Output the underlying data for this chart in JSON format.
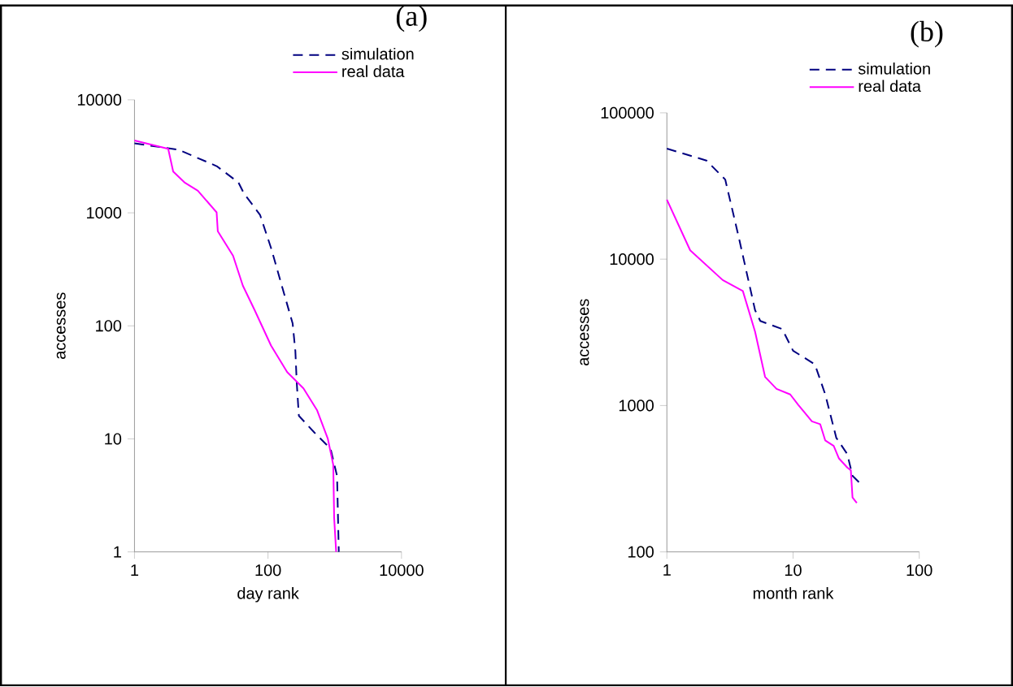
{
  "chart_data": [
    {
      "type": "line",
      "title": "(a)",
      "xlabel": "day rank",
      "ylabel": "accesses",
      "log": "xy",
      "legend": "top right",
      "xlim": [
        1,
        10000
      ],
      "ylim": [
        1,
        10000
      ],
      "xticks": [
        1,
        100,
        10000
      ],
      "yticks": [
        1,
        10,
        100,
        1000,
        10000
      ],
      "series": [
        {
          "name": "simulation",
          "color": "#000080",
          "line_style": "dashed",
          "x": [
            1,
            4.6,
            17,
            36,
            43.5,
            76,
            111,
            161,
            234,
            257,
            270,
            290,
            494,
            865,
            1083,
            1150
          ],
          "values": [
            4120,
            3610,
            2590,
            1860,
            1490,
            960,
            490,
            227,
            105,
            60,
            31,
            16,
            11.4,
            8.2,
            4.7,
            1
          ]
        },
        {
          "name": "real data",
          "color": "#ff00ff",
          "line_style": "solid",
          "x": [
            1,
            3.2,
            3.8,
            5.6,
            8.9,
            17,
            17.7,
            30,
            42,
            63,
            111,
            194,
            340,
            542,
            789,
            950,
            980,
            1050
          ],
          "values": [
            4360,
            3690,
            2320,
            1860,
            1570,
            1010,
            687,
            417,
            227,
            138,
            67,
            39,
            28,
            18,
            10,
            5.9,
            2,
            1
          ]
        }
      ]
    },
    {
      "type": "line",
      "title": "(b)",
      "xlabel": "month rank",
      "ylabel": "accesses",
      "log": "xy",
      "legend": "top right",
      "xlim": [
        1,
        100
      ],
      "ylim": [
        100,
        100000
      ],
      "xticks": [
        1,
        10,
        100
      ],
      "yticks": [
        100,
        1000,
        10000,
        100000
      ],
      "series": [
        {
          "name": "simulation",
          "color": "#000080",
          "line_style": "dashed",
          "x": [
            1,
            2.06,
            2.9,
            3.7,
            5.0,
            5.5,
            8.2,
            10,
            14.9,
            18,
            22,
            26.9,
            29.6,
            34.4
          ],
          "values": [
            56900,
            47200,
            35000,
            14300,
            4480,
            3780,
            3330,
            2370,
            1910,
            1190,
            602,
            466,
            331,
            291
          ]
        },
        {
          "name": "real data",
          "color": "#ff00ff",
          "line_style": "solid",
          "x": [
            1,
            1.53,
            2.77,
            4.0,
            5.0,
            6.0,
            7.4,
            9.5,
            11,
            14.1,
            16.4,
            18,
            21,
            23.1,
            26.9,
            28.7,
            29.6,
            32
          ],
          "values": [
            25500,
            11500,
            7200,
            6060,
            3190,
            1570,
            1300,
            1190,
            1010,
            780,
            746,
            577,
            530,
            435,
            377,
            361,
            235,
            216
          ]
        }
      ]
    }
  ]
}
